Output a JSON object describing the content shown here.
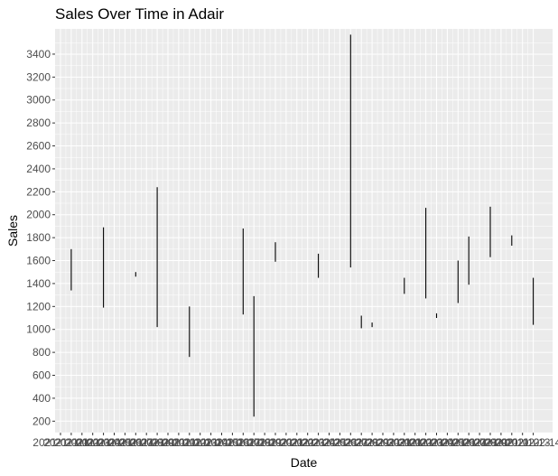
{
  "chart_data": {
    "type": "bar",
    "title": "Sales Over Time in Adair",
    "xlabel": "Date",
    "ylabel": "Sales",
    "ylim": [
      100,
      3620
    ],
    "yticks": [
      200,
      400,
      600,
      800,
      1000,
      1200,
      1400,
      1600,
      1800,
      2000,
      2200,
      2400,
      2600,
      2800,
      3000,
      3200,
      3400
    ],
    "grid": true,
    "background": "#ebebeb",
    "grid_color": "#ffffff",
    "mark_color": "#000000",
    "n_dates": 45,
    "x_tick_labels": [
      "2021-01-01",
      "2021-01-02",
      "2021-01-03",
      "2021-01-04",
      "2021-01-05",
      "2021-01-06",
      "2021-01-07",
      "2021-01-08",
      "2021-01-09",
      "2021-01-10",
      "2021-01-11",
      "2021-01-12",
      "2021-01-13",
      "2021-01-14",
      "2021-01-15",
      "2021-01-16",
      "2021-01-17",
      "2021-01-18",
      "2021-01-19",
      "2021-01-20",
      "2021-01-21",
      "2021-01-22",
      "2021-01-23",
      "2021-01-24",
      "2021-01-25",
      "2021-01-26",
      "2021-01-27",
      "2021-01-28",
      "2021-01-29",
      "2021-01-30",
      "2021-01-31",
      "2021-02-01",
      "2021-02-02",
      "2021-02-03",
      "2021-02-04",
      "2021-02-05",
      "2021-02-06",
      "2021-02-07",
      "2021-02-08",
      "2021-02-09",
      "2021-02-10",
      "2021-02-11",
      "2021-02-12",
      "2021-02-13",
      "2021-02-14"
    ],
    "ranges": [
      {
        "i": 1,
        "low": 1340,
        "high": 1700
      },
      {
        "i": 4,
        "low": 1190,
        "high": 1890
      },
      {
        "i": 7,
        "low": 1460,
        "high": 1500
      },
      {
        "i": 9,
        "low": 1020,
        "high": 2240
      },
      {
        "i": 12,
        "low": 760,
        "high": 1200
      },
      {
        "i": 17,
        "low": 1130,
        "high": 1880
      },
      {
        "i": 18,
        "low": 240,
        "high": 1290
      },
      {
        "i": 20,
        "low": 1590,
        "high": 1760
      },
      {
        "i": 24,
        "low": 1450,
        "high": 1660
      },
      {
        "i": 27,
        "low": 1540,
        "high": 3570
      },
      {
        "i": 28,
        "low": 1010,
        "high": 1120
      },
      {
        "i": 29,
        "low": 1020,
        "high": 1060
      },
      {
        "i": 32,
        "low": 1310,
        "high": 1450
      },
      {
        "i": 34,
        "low": 1270,
        "high": 2060
      },
      {
        "i": 35,
        "low": 1100,
        "high": 1140
      },
      {
        "i": 37,
        "low": 1230,
        "high": 1600
      },
      {
        "i": 38,
        "low": 1390,
        "high": 1810
      },
      {
        "i": 40,
        "low": 1630,
        "high": 2070
      },
      {
        "i": 42,
        "low": 1730,
        "high": 1820
      },
      {
        "i": 44,
        "low": 1040,
        "high": 1450
      }
    ]
  }
}
